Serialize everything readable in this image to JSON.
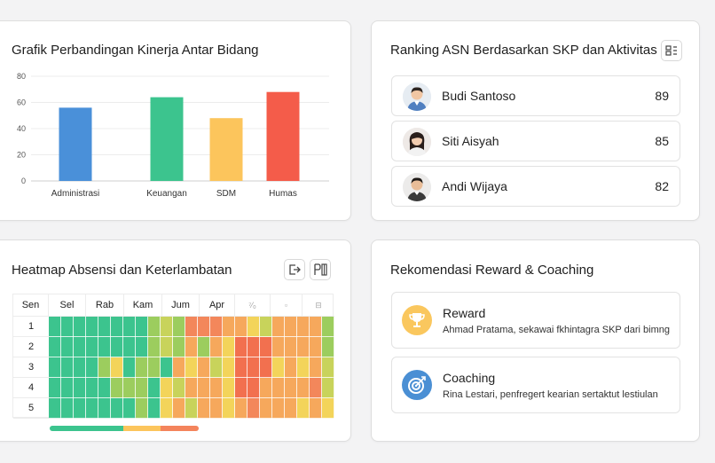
{
  "perf_card": {
    "title": "Grafik Perbandingan Kinerja Antar Bidang"
  },
  "chart_data": {
    "type": "bar",
    "title": "Grafik Perbandingan Kinerja Antar Bidang",
    "categories": [
      "Administrasi",
      "Keuangan",
      "SDM",
      "Humas"
    ],
    "values": [
      56,
      64,
      48,
      68
    ],
    "colors": [
      "#4a90d9",
      "#3cc48e",
      "#fcc55c",
      "#f45c4a"
    ],
    "yticks": [
      "0",
      "20",
      "40",
      "60",
      "80"
    ],
    "ylim": [
      0,
      80
    ],
    "grid": true
  },
  "ranking": {
    "title": "Ranking ASN Berdasarkan SKP dan Aktivitas",
    "filter_icon": "sort-icon",
    "items": [
      {
        "name": "Budi Santoso",
        "score": "89"
      },
      {
        "name": "Siti Aisyah",
        "score": "85"
      },
      {
        "name": "Andi Wijaya",
        "score": "82"
      }
    ]
  },
  "heatmap": {
    "title": "Heatmap Absensi dan Keterlambatan",
    "export_icon": "export-icon",
    "pdf_icon": "pdf-icon",
    "col_headers": [
      "Sen",
      "Sel",
      "Rab",
      "Kam",
      "Jum",
      "Apr",
      "⁷⁄₀",
      "▫",
      "⊟"
    ],
    "row_labels": [
      "1",
      "2",
      "3",
      "4",
      "5"
    ],
    "legend_colors": [
      "#3cc48e",
      "#fcc55c",
      "#f4845c"
    ]
  },
  "recommend": {
    "title": "Rekomendasi Reward & Coaching",
    "items": [
      {
        "title": "Reward",
        "desc": "Ahmad Pratama, sekawai fkhintagra SKP dari bimng",
        "icon": "trophy-icon",
        "color": "#fac75e"
      },
      {
        "title": "Coaching",
        "desc": "Rina Lestari, penfregert kearian sertaktut lestiulan",
        "icon": "target-icon",
        "color": "#4a8fd4"
      }
    ]
  }
}
